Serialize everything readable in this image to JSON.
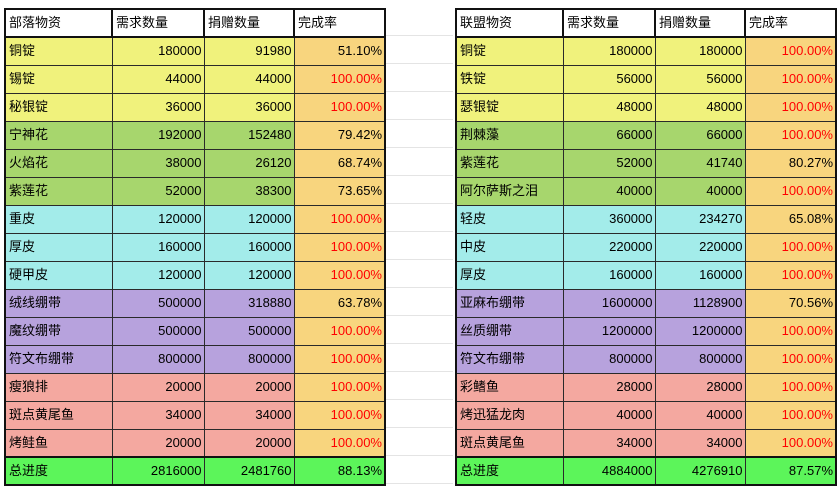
{
  "colors": {
    "header_bg": "#ffffff",
    "rate_cell_bg": "#f8d57e",
    "rate_complete_text": "#ff0000",
    "rate_incomplete_text": "#000000",
    "total_bg": "#5cf55a"
  },
  "tables": [
    {
      "headers": [
        "部落物资",
        "需求数量",
        "捐赠数量",
        "完成率"
      ],
      "rows": [
        {
          "item": "铜锭",
          "required": 180000,
          "donated": 91980,
          "rate": "51.10%",
          "bg": "#f0f27c",
          "rate_color": "#000000"
        },
        {
          "item": "锡锭",
          "required": 44000,
          "donated": 44000,
          "rate": "100.00%",
          "bg": "#f0f27c",
          "rate_color": "#ff0000"
        },
        {
          "item": "秘银锭",
          "required": 36000,
          "donated": 36000,
          "rate": "100.00%",
          "bg": "#f0f27c",
          "rate_color": "#ff0000"
        },
        {
          "item": "宁神花",
          "required": 192000,
          "donated": 152480,
          "rate": "79.42%",
          "bg": "#a7d66d",
          "rate_color": "#000000"
        },
        {
          "item": "火焰花",
          "required": 38000,
          "donated": 26120,
          "rate": "68.74%",
          "bg": "#a7d66d",
          "rate_color": "#000000"
        },
        {
          "item": "紫莲花",
          "required": 52000,
          "donated": 38300,
          "rate": "73.65%",
          "bg": "#a7d66d",
          "rate_color": "#000000"
        },
        {
          "item": "重皮",
          "required": 120000,
          "donated": 120000,
          "rate": "100.00%",
          "bg": "#a3ecea",
          "rate_color": "#ff0000"
        },
        {
          "item": "厚皮",
          "required": 160000,
          "donated": 160000,
          "rate": "100.00%",
          "bg": "#a3ecea",
          "rate_color": "#ff0000"
        },
        {
          "item": "硬甲皮",
          "required": 120000,
          "donated": 120000,
          "rate": "100.00%",
          "bg": "#a3ecea",
          "rate_color": "#ff0000"
        },
        {
          "item": "绒线绷带",
          "required": 500000,
          "donated": 318880,
          "rate": "63.78%",
          "bg": "#b7a2dd",
          "rate_color": "#000000"
        },
        {
          "item": "魔纹绷带",
          "required": 500000,
          "donated": 500000,
          "rate": "100.00%",
          "bg": "#b7a2dd",
          "rate_color": "#ff0000"
        },
        {
          "item": "符文布绷带",
          "required": 800000,
          "donated": 800000,
          "rate": "100.00%",
          "bg": "#b7a2dd",
          "rate_color": "#ff0000"
        },
        {
          "item": "瘦狼排",
          "required": 20000,
          "donated": 20000,
          "rate": "100.00%",
          "bg": "#f4a8a0",
          "rate_color": "#ff0000"
        },
        {
          "item": "斑点黄尾鱼",
          "required": 34000,
          "donated": 34000,
          "rate": "100.00%",
          "bg": "#f4a8a0",
          "rate_color": "#ff0000"
        },
        {
          "item": "烤鲑鱼",
          "required": 20000,
          "donated": 20000,
          "rate": "100.00%",
          "bg": "#f4a8a0",
          "rate_color": "#ff0000"
        }
      ],
      "total": {
        "item": "总进度",
        "required": 2816000,
        "donated": 2481760,
        "rate": "88.13%"
      }
    },
    {
      "headers": [
        "联盟物资",
        "需求数量",
        "捐赠数量",
        "完成率"
      ],
      "rows": [
        {
          "item": "铜锭",
          "required": 180000,
          "donated": 180000,
          "rate": "100.00%",
          "bg": "#f0f27c",
          "rate_color": "#ff0000"
        },
        {
          "item": "铁锭",
          "required": 56000,
          "donated": 56000,
          "rate": "100.00%",
          "bg": "#f0f27c",
          "rate_color": "#ff0000"
        },
        {
          "item": "瑟银锭",
          "required": 48000,
          "donated": 48000,
          "rate": "100.00%",
          "bg": "#f0f27c",
          "rate_color": "#ff0000"
        },
        {
          "item": "荆棘藻",
          "required": 66000,
          "donated": 66000,
          "rate": "100.00%",
          "bg": "#a7d66d",
          "rate_color": "#ff0000"
        },
        {
          "item": "紫莲花",
          "required": 52000,
          "donated": 41740,
          "rate": "80.27%",
          "bg": "#a7d66d",
          "rate_color": "#000000"
        },
        {
          "item": "阿尔萨斯之泪",
          "required": 40000,
          "donated": 40000,
          "rate": "100.00%",
          "bg": "#a7d66d",
          "rate_color": "#ff0000"
        },
        {
          "item": "轻皮",
          "required": 360000,
          "donated": 234270,
          "rate": "65.08%",
          "bg": "#a3ecea",
          "rate_color": "#000000"
        },
        {
          "item": "中皮",
          "required": 220000,
          "donated": 220000,
          "rate": "100.00%",
          "bg": "#a3ecea",
          "rate_color": "#ff0000"
        },
        {
          "item": "厚皮",
          "required": 160000,
          "donated": 160000,
          "rate": "100.00%",
          "bg": "#a3ecea",
          "rate_color": "#ff0000"
        },
        {
          "item": "亚麻布绷带",
          "required": 1600000,
          "donated": 1128900,
          "rate": "70.56%",
          "bg": "#b7a2dd",
          "rate_color": "#000000"
        },
        {
          "item": "丝质绷带",
          "required": 1200000,
          "donated": 1200000,
          "rate": "100.00%",
          "bg": "#b7a2dd",
          "rate_color": "#ff0000"
        },
        {
          "item": "符文布绷带",
          "required": 800000,
          "donated": 800000,
          "rate": "100.00%",
          "bg": "#b7a2dd",
          "rate_color": "#ff0000"
        },
        {
          "item": "彩鳍鱼",
          "required": 28000,
          "donated": 28000,
          "rate": "100.00%",
          "bg": "#f4a8a0",
          "rate_color": "#ff0000"
        },
        {
          "item": "烤迅猛龙肉",
          "required": 40000,
          "donated": 40000,
          "rate": "100.00%",
          "bg": "#f4a8a0",
          "rate_color": "#ff0000"
        },
        {
          "item": "斑点黄尾鱼",
          "required": 34000,
          "donated": 34000,
          "rate": "100.00%",
          "bg": "#f4a8a0",
          "rate_color": "#ff0000"
        }
      ],
      "total": {
        "item": "总进度",
        "required": 4884000,
        "donated": 4276910,
        "rate": "87.57%"
      }
    }
  ]
}
